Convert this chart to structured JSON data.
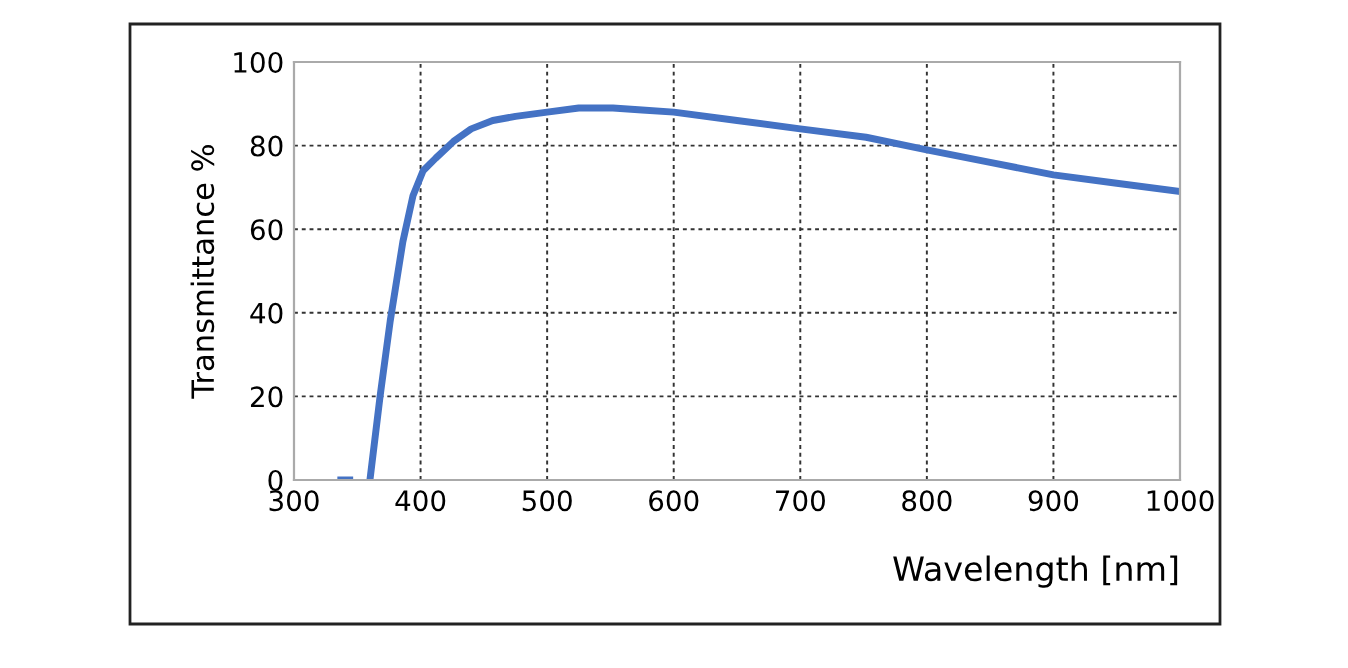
{
  "chart_data": {
    "type": "line",
    "xlabel": "Wavelength [nm]",
    "ylabel": "Transmittance %",
    "x": [
      337,
      344,
      352,
      360,
      368,
      376,
      386,
      394,
      402,
      412,
      426,
      440,
      457,
      475,
      500,
      525,
      552,
      575,
      600,
      650,
      700,
      752,
      800,
      850,
      900,
      950,
      1000
    ],
    "series": [
      {
        "color": "#4472c4",
        "values": [
          0,
          0,
          null,
          0,
          20,
          38,
          57,
          68,
          74,
          77,
          81,
          84,
          86,
          87,
          88,
          89,
          89,
          88.5,
          88,
          86,
          84,
          82,
          79,
          76,
          73,
          71,
          69
        ]
      }
    ],
    "xlim": [
      300,
      1000
    ],
    "xticks": [
      300,
      400,
      500,
      600,
      700,
      800,
      900,
      1000
    ],
    "ylim": [
      0,
      100
    ],
    "yticks": [
      0,
      20,
      40,
      60,
      80,
      100
    ],
    "grid": true,
    "line_style": "solid",
    "marker": "none"
  }
}
